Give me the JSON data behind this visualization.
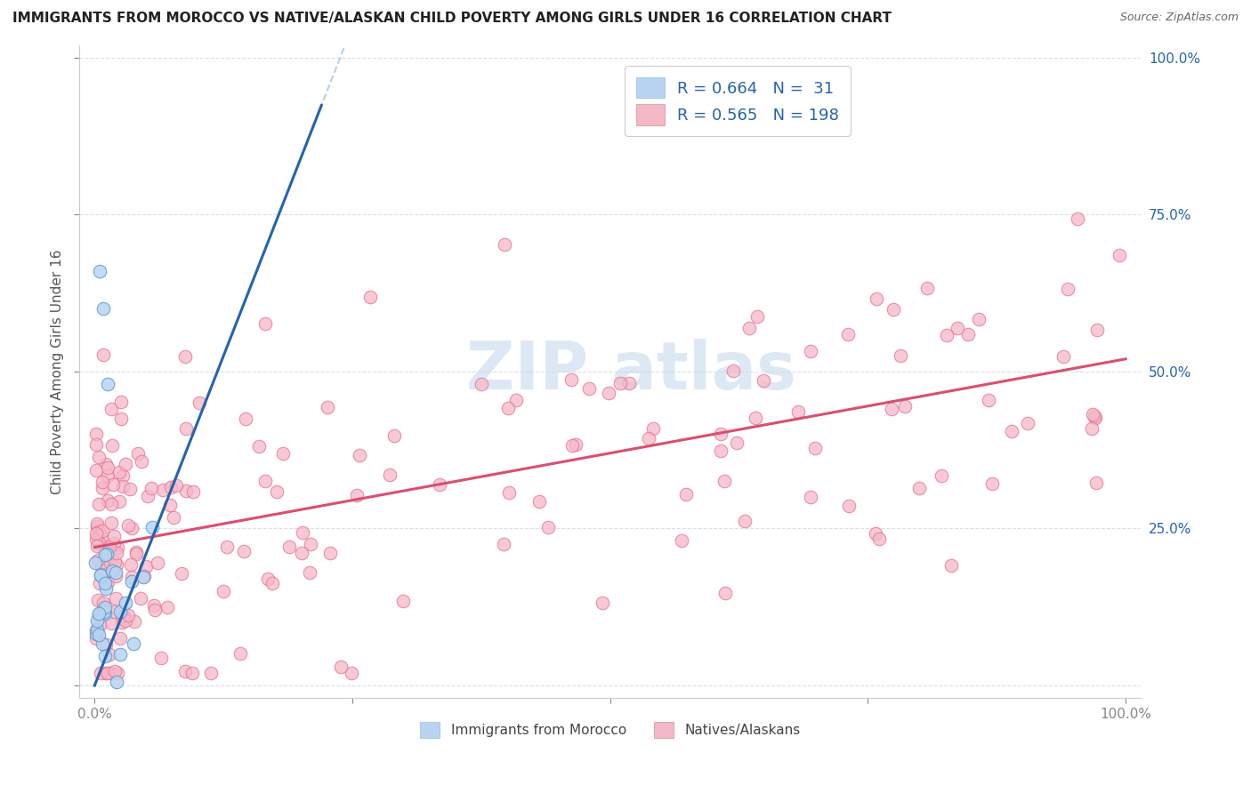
{
  "title": "IMMIGRANTS FROM MOROCCO VS NATIVE/ALASKAN CHILD POVERTY AMONG GIRLS UNDER 16 CORRELATION CHART",
  "source": "Source: ZipAtlas.com",
  "ylabel": "Child Poverty Among Girls Under 16",
  "R_blue": 0.664,
  "N_blue": 31,
  "R_pink": 0.565,
  "N_pink": 198,
  "blue_color": "#b8d4f0",
  "blue_edge_color": "#5b9bd5",
  "blue_line_color": "#2563ae",
  "pink_color": "#f5b8c8",
  "pink_edge_color": "#e87090",
  "pink_line_color": "#d94f70",
  "legend_text_color": "#2563ae",
  "right_axis_color": "#2563ae",
  "watermark_color": "#dde8f5",
  "background_color": "#ffffff",
  "grid_color": "#d0d8e4",
  "title_color": "#222222",
  "source_color": "#666666",
  "ylabel_color": "#555555",
  "tick_color": "#888888",
  "blue_line_intercept": 0.0,
  "blue_line_slope": 4.2,
  "pink_line_intercept": 0.22,
  "pink_line_slope": 0.3
}
